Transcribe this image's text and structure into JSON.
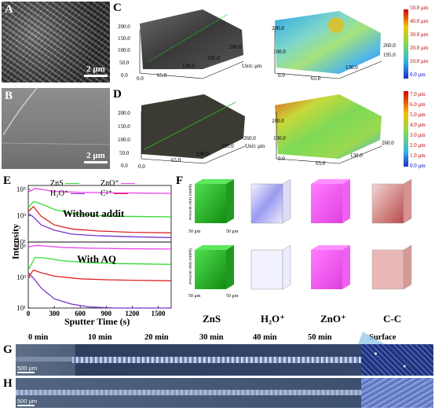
{
  "panels": {
    "A": {
      "letter": "A",
      "scale": "2 μm"
    },
    "B": {
      "letter": "B",
      "scale": "2 μm"
    },
    "C": {
      "letter": "C",
      "unit": "Unit: μm",
      "y_ticks": [
        "200.0",
        "150.0",
        "100.0",
        "50.0",
        "0.0"
      ],
      "x_ticks": [
        "0.0",
        "65.0",
        "130.0",
        "195.0",
        "260.0"
      ],
      "colorbar": [
        "50.0 μm",
        "40.0 μm",
        "30.0 μm",
        "20.0 μm",
        "10.0 μm",
        "0.0 μm"
      ]
    },
    "D": {
      "letter": "D",
      "unit": "Unit: μm",
      "y_ticks": [
        "200.0",
        "150.0",
        "100.0",
        "50.0",
        "0.0"
      ],
      "x_ticks": [
        "0.0",
        "65.0",
        "130.0",
        "195.0",
        "260.0"
      ],
      "colorbar": [
        "7.0 μm",
        "6.0 μm",
        "5.0 μm",
        "4.0 μm",
        "3.0 μm",
        "2.0 μm",
        "1.0 μm",
        "0.0 μm"
      ]
    },
    "E": {
      "letter": "E",
      "ylabel": "Intensity",
      "xlabel": "Sputter Time (s)",
      "legend": [
        "ZnS",
        "ZnO⁺",
        "H₂O⁺",
        "C²⁺"
      ],
      "top_label": "Without addit",
      "bottom_label": "With AQ"
    },
    "F": {
      "letter": "F",
      "axis_text": "Sputter time increase",
      "cube_scale": "50 μm",
      "labels": [
        "ZnS",
        "H₂O⁺",
        "ZnO⁺",
        "C-C"
      ]
    },
    "G": {
      "letter": "G",
      "scale": "500 μm"
    },
    "H": {
      "letter": "H",
      "scale": "500 μm"
    },
    "times": [
      "0 min",
      "10 min",
      "20 min",
      "30 min",
      "40 min",
      "50 min",
      "Surface"
    ]
  },
  "chart_data": {
    "type": "line",
    "xlabel": "Sputter Time (s)",
    "ylabel": "Intensity",
    "x_ticks": [
      0,
      300,
      600,
      900,
      1200,
      1500
    ],
    "xlim": [
      0,
      1650
    ],
    "y_scale": "log",
    "subplots": [
      {
        "label": "Without addit",
        "ylim": [
          10,
          200000
        ],
        "y_ticks": [
          "10⁵",
          "10³",
          "10¹"
        ],
        "series": [
          {
            "name": "ZnS",
            "color": "#33dd33",
            "x": [
              0,
              60,
              150,
              300,
              500,
              800,
              1100,
              1400,
              1650
            ],
            "y": [
              4000,
              12000,
              8000,
              3000,
              1500,
              1000,
              900,
              850,
              820
            ]
          },
          {
            "name": "ZnO⁺",
            "color": "#ee44ee",
            "x": [
              0,
              80,
              150,
              300,
              600,
              1000,
              1400,
              1650
            ],
            "y": [
              60000,
              120000,
              100000,
              70000,
              60000,
              55000,
              52000,
              50000
            ]
          },
          {
            "name": "H₂O⁺",
            "color": "#7733cc",
            "x": [
              0,
              60,
              150,
              300,
              500,
              800,
              1200,
              1650
            ],
            "y": [
              1500,
              800,
              200,
              80,
              40,
              30,
              25,
              22
            ]
          },
          {
            "name": "C²⁺",
            "color": "#dd2222",
            "x": [
              0,
              60,
              150,
              300,
              500,
              800,
              1200,
              1650
            ],
            "y": [
              2000,
              5000,
              900,
              200,
              100,
              70,
              55,
              50
            ]
          }
        ]
      },
      {
        "label": "With AQ",
        "ylim": [
          10,
          200000
        ],
        "y_ticks": [
          "10⁵",
          "10³",
          "10¹"
        ],
        "series": [
          {
            "name": "ZnS",
            "color": "#33dd33",
            "x": [
              0,
              80,
              200,
              400,
              700,
              1000,
              1300,
              1650
            ],
            "y": [
              3000,
              20000,
              18000,
              12000,
              9000,
              8000,
              7500,
              7000
            ]
          },
          {
            "name": "ZnO⁺",
            "color": "#ee44ee",
            "x": [
              0,
              100,
              200,
              400,
              700,
              1000,
              1300,
              1650
            ],
            "y": [
              100000,
              120000,
              110000,
              90000,
              80000,
              75000,
              72000,
              70000
            ]
          },
          {
            "name": "H₂O⁺",
            "color": "#7733cc",
            "x": [
              0,
              60,
              150,
              300,
              500,
              700,
              1000,
              1650
            ],
            "y": [
              2000,
              900,
              200,
              40,
              18,
              12,
              10,
              10
            ]
          },
          {
            "name": "C²⁺",
            "color": "#dd2222",
            "x": [
              0,
              60,
              150,
              300,
              600,
              900,
              1200,
              1650
            ],
            "y": [
              1000,
              3000,
              2000,
              1200,
              800,
              700,
              650,
              600
            ]
          }
        ]
      }
    ]
  }
}
